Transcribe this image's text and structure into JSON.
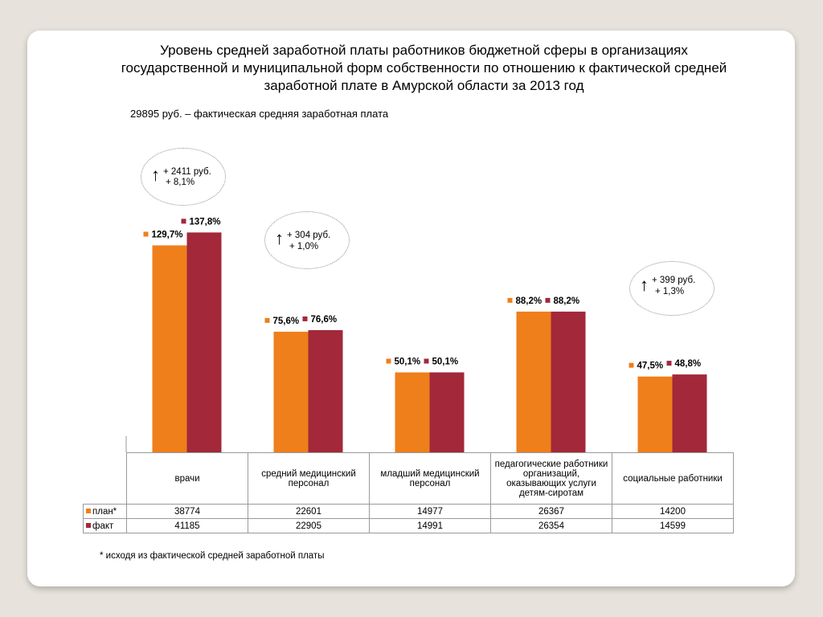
{
  "slide": {
    "title": "Уровень средней заработной платы работников бюджетной сферы в организациях государственной и муниципальной форм собственности по отношению к фактической средней заработной плате в Амурской области за 2013 год",
    "subtitle": "29895 руб. – фактическая средняя заработная плата",
    "footnote": "* исходя из фактической средней заработной платы"
  },
  "callouts": [
    {
      "arrow": "↑",
      "line1": "+ 2411 руб.",
      "line2": "+ 8,1%"
    },
    {
      "arrow": "↑",
      "line1": "+ 304 руб.",
      "line2": "+ 1,0%"
    },
    {
      "arrow": "↑",
      "line1": "+ 399 руб.",
      "line2": "+ 1,3%"
    }
  ],
  "colors": {
    "plan": "#ef7f1a",
    "fact": "#a2283a",
    "grid": "#9a9a9a"
  },
  "chart_data": {
    "type": "bar",
    "categories": [
      "врачи",
      "средний медицинский персонал",
      "младший медицинский персонал",
      "педагогические работники организаций, оказывающих услуги детям-сиротам",
      "социальные работники"
    ],
    "series": [
      {
        "name": "план*",
        "values": [
          129.7,
          75.6,
          50.1,
          88.2,
          47.5
        ],
        "labels": [
          "129,7%",
          "75,6%",
          "50,1%",
          "88,2%",
          "47,5%"
        ],
        "table": [
          "38774",
          "22601",
          "14977",
          "26367",
          "14200"
        ]
      },
      {
        "name": "факт",
        "values": [
          137.8,
          76.6,
          50.1,
          88.2,
          48.8
        ],
        "labels": [
          "137,8%",
          "76,6%",
          "50,1%",
          "88,2%",
          "48,8%"
        ],
        "table": [
          "41185",
          "22905",
          "14991",
          "26354",
          "14599"
        ]
      }
    ],
    "ylim": [
      0,
      140
    ],
    "legend": "data-table-left",
    "grid": false
  }
}
